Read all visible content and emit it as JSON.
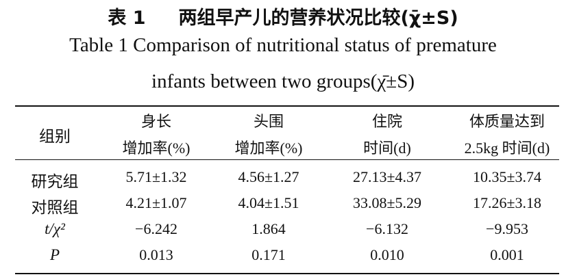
{
  "title": {
    "label": "表 1",
    "text": "两组早产儿的营养状况比较(χ̄±S)"
  },
  "subtitle": [
    "Table 1 Comparison of nutritional status of premature",
    "infants between two groups(χ̄±S)"
  ],
  "table": {
    "header": [
      [
        "组别"
      ],
      [
        "身长",
        "增加率(%)"
      ],
      [
        "头围",
        "增加率(%)"
      ],
      [
        "住院",
        "时间(d)"
      ],
      [
        "体质量达到",
        "2.5kg 时间(d)"
      ]
    ],
    "rows": [
      [
        "研究组",
        "5.71±1.32",
        "4.56±1.27",
        "27.13±4.37",
        "10.35±3.74"
      ],
      [
        "对照组",
        "4.21±1.07",
        "4.04±1.51",
        "33.08±5.29",
        "17.26±3.18"
      ],
      [
        "t/χ²",
        "−6.242",
        "1.864",
        "−6.132",
        "−9.953"
      ],
      [
        "P",
        "0.013",
        "0.171",
        "0.010",
        "0.001"
      ]
    ]
  }
}
